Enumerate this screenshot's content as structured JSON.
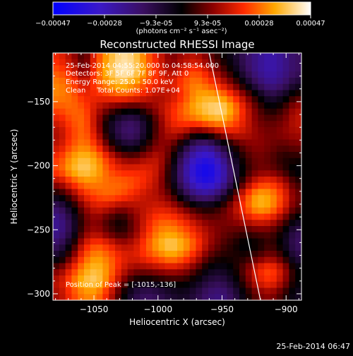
{
  "colorbar": {
    "ticks": [
      "-0.00047",
      "-0.00028",
      "-9.3e-05",
      "9.3e-05",
      "0.00028",
      "0.00047"
    ],
    "unit_label": "(photons cm⁻² s⁻¹ asec⁻²)",
    "range": [
      -0.00047,
      0.00047
    ]
  },
  "info": {
    "time_range": "25-Feb-2014 04:55:20.000 to 04:58:54.000",
    "detectors": "Detectors: 3F 5F 6F 7F 8F 9F, Att 0",
    "energy": "Energy Range: 25.0 - 50.0 keV",
    "method": "Clean     Total Counts: 1.07E+04",
    "peak": "Position of Peak = [-1015,-136]"
  },
  "footer": {
    "timestamp": "25-Feb-2014 06:47"
  },
  "chart_data": {
    "type": "heatmap",
    "title": "Reconstructed RHESSI Image",
    "xlabel": "Heliocentric X (arcsec)",
    "ylabel": "Heliocentric Y (arcsec)",
    "xlim": [
      -1082,
      -888
    ],
    "ylim": [
      -305,
      -112
    ],
    "xticks": [
      -1050,
      -1000,
      -950,
      -900
    ],
    "yticks": [
      -150,
      -200,
      -250,
      -300
    ],
    "xtick_labels": [
      "−1050",
      "−1000",
      "−950",
      "−900"
    ],
    "ytick_labels": [
      "−150",
      "−200",
      "−250",
      "−300"
    ],
    "colormap": "blue-purple-black-red-yellow-white",
    "limb_line": [
      [
        -960,
        -112
      ],
      [
        -920,
        -305
      ]
    ],
    "grid": {
      "cols": 20,
      "rows": 20,
      "x_start": -1080,
      "x_step": 10,
      "y_start": -115,
      "y_step": -10,
      "note_rows_top_to_bottom": "values normalized -1..1 (colorbar range)",
      "z": [
        [
          0.45,
          0.3,
          0.1,
          0.5,
          0.75,
          0.9,
          0.85,
          0.6,
          0.4,
          0.2,
          0.3,
          0.35,
          0.2,
          0.05,
          -0.1,
          -0.3,
          -0.45,
          -0.55,
          -0.45,
          -0.3
        ],
        [
          0.55,
          0.45,
          0.2,
          0.55,
          0.8,
          0.95,
          0.9,
          0.65,
          0.45,
          0.3,
          0.45,
          0.55,
          0.4,
          0.2,
          0.0,
          -0.25,
          -0.45,
          -0.55,
          -0.45,
          -0.3
        ],
        [
          0.65,
          0.55,
          0.35,
          0.55,
          0.7,
          0.8,
          0.7,
          0.55,
          0.45,
          0.4,
          0.55,
          0.65,
          0.55,
          0.4,
          0.2,
          -0.05,
          -0.3,
          -0.45,
          -0.35,
          -0.15
        ],
        [
          0.65,
          0.6,
          0.45,
          0.45,
          0.5,
          0.55,
          0.5,
          0.4,
          0.3,
          0.35,
          0.5,
          0.7,
          0.75,
          0.7,
          0.5,
          0.25,
          0.0,
          -0.2,
          -0.1,
          0.1
        ],
        [
          0.55,
          0.6,
          0.55,
          0.35,
          0.2,
          0.1,
          0.05,
          0.15,
          0.3,
          0.45,
          0.6,
          0.75,
          0.85,
          0.9,
          0.7,
          0.4,
          0.15,
          0.0,
          0.1,
          0.3
        ],
        [
          0.4,
          0.55,
          0.6,
          0.3,
          -0.05,
          -0.25,
          -0.3,
          -0.1,
          0.2,
          0.45,
          0.55,
          0.6,
          0.7,
          0.75,
          0.6,
          0.4,
          0.2,
          0.15,
          0.2,
          0.35
        ],
        [
          0.3,
          0.5,
          0.6,
          0.35,
          -0.05,
          -0.3,
          -0.35,
          -0.1,
          0.2,
          0.35,
          0.3,
          0.1,
          0.15,
          0.3,
          0.4,
          0.35,
          0.25,
          0.2,
          0.25,
          0.3
        ],
        [
          0.35,
          0.55,
          0.65,
          0.5,
          0.15,
          -0.1,
          -0.15,
          0.05,
          0.25,
          0.2,
          -0.1,
          -0.4,
          -0.45,
          -0.2,
          0.05,
          0.2,
          0.25,
          0.2,
          0.15,
          0.2
        ],
        [
          0.5,
          0.7,
          0.8,
          0.7,
          0.45,
          0.25,
          0.2,
          0.3,
          0.35,
          0.1,
          -0.35,
          -0.65,
          -0.75,
          -0.5,
          -0.15,
          0.1,
          0.2,
          0.15,
          0.05,
          0.05
        ],
        [
          0.55,
          0.75,
          0.85,
          0.75,
          0.55,
          0.45,
          0.45,
          0.45,
          0.35,
          0.0,
          -0.45,
          -0.8,
          -0.9,
          -0.65,
          -0.25,
          0.05,
          0.2,
          0.2,
          0.1,
          -0.05
        ],
        [
          0.3,
          0.5,
          0.65,
          0.65,
          0.6,
          0.6,
          0.55,
          0.45,
          0.3,
          0.0,
          -0.4,
          -0.7,
          -0.8,
          -0.6,
          -0.2,
          0.2,
          0.45,
          0.5,
          0.35,
          0.1
        ],
        [
          0.0,
          0.2,
          0.45,
          0.55,
          0.6,
          0.55,
          0.45,
          0.35,
          0.3,
          0.15,
          -0.15,
          -0.4,
          -0.45,
          -0.25,
          0.1,
          0.5,
          0.75,
          0.7,
          0.5,
          0.2
        ],
        [
          -0.3,
          -0.05,
          0.25,
          0.4,
          0.35,
          0.25,
          0.3,
          0.35,
          0.4,
          0.35,
          0.2,
          0.05,
          0.0,
          0.1,
          0.3,
          0.55,
          0.75,
          0.7,
          0.45,
          0.15
        ],
        [
          -0.45,
          -0.2,
          0.15,
          0.25,
          0.1,
          0.0,
          0.2,
          0.4,
          0.55,
          0.55,
          0.45,
          0.3,
          0.2,
          0.2,
          0.25,
          0.35,
          0.45,
          0.4,
          0.2,
          -0.05
        ],
        [
          -0.45,
          -0.2,
          0.2,
          0.3,
          0.15,
          0.05,
          0.2,
          0.45,
          0.65,
          0.7,
          0.6,
          0.45,
          0.3,
          0.2,
          0.15,
          0.1,
          0.15,
          0.15,
          0.0,
          -0.25
        ],
        [
          -0.3,
          0.0,
          0.4,
          0.55,
          0.45,
          0.3,
          0.35,
          0.55,
          0.75,
          0.85,
          0.75,
          0.55,
          0.3,
          0.15,
          0.05,
          -0.05,
          0.0,
          0.1,
          -0.05,
          -0.3
        ],
        [
          -0.1,
          0.2,
          0.55,
          0.7,
          0.6,
          0.45,
          0.4,
          0.5,
          0.6,
          0.7,
          0.6,
          0.4,
          0.15,
          0.05,
          0.05,
          0.05,
          0.15,
          0.25,
          0.1,
          -0.2
        ],
        [
          0.2,
          0.45,
          0.7,
          0.8,
          0.65,
          0.4,
          0.25,
          0.25,
          0.3,
          0.35,
          0.3,
          0.15,
          -0.05,
          -0.1,
          0.0,
          0.2,
          0.45,
          0.55,
          0.35,
          0.0
        ],
        [
          0.35,
          0.6,
          0.8,
          0.85,
          0.6,
          0.25,
          0.0,
          -0.05,
          0.0,
          0.05,
          0.05,
          -0.05,
          -0.2,
          -0.25,
          -0.1,
          0.15,
          0.4,
          0.5,
          0.3,
          0.0
        ],
        [
          0.3,
          0.5,
          0.65,
          0.65,
          0.4,
          0.05,
          -0.2,
          -0.3,
          -0.25,
          -0.15,
          -0.1,
          -0.2,
          -0.35,
          -0.4,
          -0.25,
          0.0,
          0.2,
          0.25,
          0.1,
          -0.1
        ]
      ]
    }
  }
}
